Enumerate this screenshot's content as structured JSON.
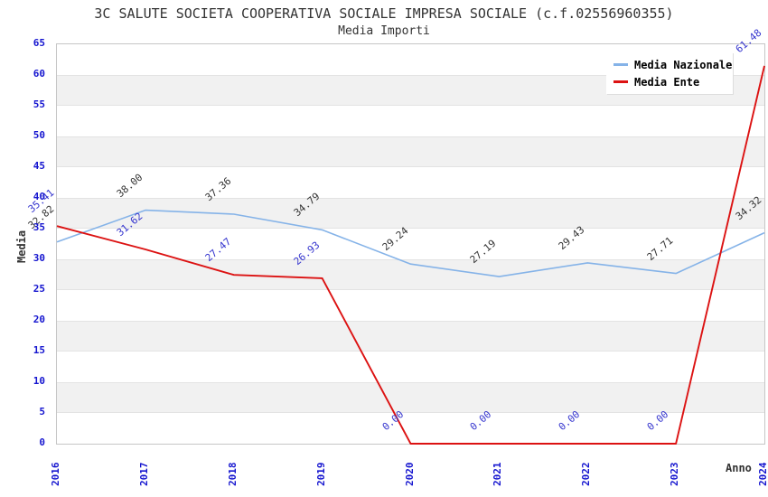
{
  "header": {
    "title": "3C SALUTE SOCIETA COOPERATIVA SOCIALE IMPRESA SOCIALE (c.f.02556960355)",
    "subtitle": "Media Importi"
  },
  "axes": {
    "x_label": "Anno",
    "y_label": "Media",
    "x_ticks": [
      "2016",
      "2017",
      "2018",
      "2019",
      "2020",
      "2021",
      "2022",
      "2023",
      "2024"
    ],
    "y_ticks": [
      0,
      5,
      10,
      15,
      20,
      25,
      30,
      35,
      40,
      45,
      50,
      55,
      60,
      65
    ]
  },
  "legend": {
    "items": [
      {
        "label": "Media Nazionale",
        "color": "#85b3e8"
      },
      {
        "label": "Media Ente",
        "color": "#dc1212"
      }
    ]
  },
  "colors": {
    "nazionale_line": "#85b3e8",
    "ente_line": "#dc1212",
    "nazionale_point_label": "#333333",
    "ente_point_label": "#3434ce",
    "axis_tick_text": "#1515cf",
    "band_fill": "#f1f1f1",
    "plot_border": "#c6c6c6"
  },
  "chart_data": {
    "type": "line",
    "title": "3C SALUTE SOCIETA COOPERATIVA SOCIALE IMPRESA SOCIALE (c.f.02556960355)",
    "subtitle": "Media Importi",
    "x": [
      2016,
      2017,
      2018,
      2019,
      2020,
      2021,
      2022,
      2023,
      2024
    ],
    "series": [
      {
        "name": "Media Nazionale",
        "color": "#85b3e8",
        "label_color": "#333333",
        "values": [
          32.82,
          38.0,
          37.36,
          34.79,
          29.24,
          27.19,
          29.43,
          27.71,
          34.32
        ]
      },
      {
        "name": "Media Ente",
        "color": "#dc1212",
        "label_color": "#3434ce",
        "values": [
          35.41,
          31.62,
          27.47,
          26.93,
          0.0,
          0.0,
          0.0,
          0.0,
          61.48
        ]
      }
    ],
    "xlabel": "Anno",
    "ylabel": "Media",
    "ylim": [
      0,
      65
    ],
    "y_tick_step": 5,
    "grid": "alternating horizontal gray bands every 5 units (5-10, 15-20, 25-30, 35-40, 45-50, 55-60)",
    "legend_position": "top-right inside plot",
    "point_labels": "values shown rotated -40deg at each point, 2 decimals"
  }
}
